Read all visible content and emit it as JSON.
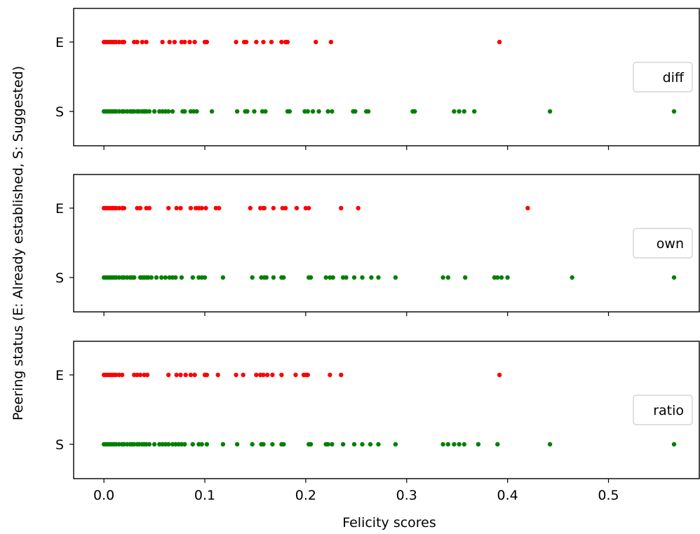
{
  "chart_data": {
    "type": "scatter",
    "xlabel": "Felicity scores",
    "ylabel": "Peering status (E: Already established, S: Suggested)",
    "xlim": [
      -0.03,
      0.59
    ],
    "x_ticks": [
      "0.0",
      "0.1",
      "0.2",
      "0.3",
      "0.4",
      "0.5"
    ],
    "y_categories": [
      "E",
      "S"
    ],
    "colors": {
      "E": "#ff0000",
      "S": "#008000"
    },
    "panels": [
      {
        "legend": "diff",
        "legend_position": "center-right",
        "series": [
          {
            "status": "E",
            "x": [
              0.0,
              0.002,
              0.004,
              0.006,
              0.008,
              0.01,
              0.012,
              0.015,
              0.018,
              0.02,
              0.03,
              0.033,
              0.038,
              0.042,
              0.058,
              0.065,
              0.07,
              0.077,
              0.08,
              0.085,
              0.09,
              0.1,
              0.102,
              0.131,
              0.139,
              0.141,
              0.151,
              0.158,
              0.166,
              0.176,
              0.18,
              0.182,
              0.21,
              0.225,
              0.392
            ]
          },
          {
            "status": "S",
            "x": [
              0.0,
              0.002,
              0.004,
              0.006,
              0.008,
              0.01,
              0.012,
              0.015,
              0.018,
              0.02,
              0.023,
              0.026,
              0.028,
              0.03,
              0.033,
              0.035,
              0.038,
              0.04,
              0.042,
              0.045,
              0.05,
              0.055,
              0.058,
              0.061,
              0.064,
              0.068,
              0.078,
              0.08,
              0.086,
              0.089,
              0.092,
              0.107,
              0.132,
              0.14,
              0.142,
              0.149,
              0.157,
              0.16,
              0.182,
              0.184,
              0.199,
              0.202,
              0.207,
              0.213,
              0.222,
              0.226,
              0.247,
              0.249,
              0.26,
              0.262,
              0.306,
              0.308,
              0.347,
              0.352,
              0.357,
              0.367,
              0.442,
              0.565
            ]
          }
        ]
      },
      {
        "legend": "own",
        "legend_position": "center-right",
        "series": [
          {
            "status": "E",
            "x": [
              0.0,
              0.002,
              0.004,
              0.006,
              0.008,
              0.01,
              0.012,
              0.015,
              0.018,
              0.02,
              0.033,
              0.036,
              0.042,
              0.045,
              0.064,
              0.072,
              0.076,
              0.086,
              0.091,
              0.094,
              0.097,
              0.101,
              0.111,
              0.114,
              0.145,
              0.155,
              0.158,
              0.159,
              0.168,
              0.177,
              0.18,
              0.191,
              0.2,
              0.203,
              0.235,
              0.252,
              0.42
            ]
          },
          {
            "status": "S",
            "x": [
              0.0,
              0.002,
              0.004,
              0.006,
              0.008,
              0.01,
              0.012,
              0.015,
              0.018,
              0.02,
              0.023,
              0.026,
              0.028,
              0.03,
              0.036,
              0.038,
              0.04,
              0.042,
              0.044,
              0.047,
              0.052,
              0.057,
              0.061,
              0.065,
              0.068,
              0.071,
              0.077,
              0.088,
              0.094,
              0.097,
              0.1,
              0.118,
              0.147,
              0.156,
              0.159,
              0.161,
              0.168,
              0.176,
              0.178,
              0.203,
              0.205,
              0.22,
              0.224,
              0.227,
              0.237,
              0.24,
              0.248,
              0.256,
              0.265,
              0.272,
              0.289,
              0.336,
              0.341,
              0.358,
              0.387,
              0.39,
              0.394,
              0.4,
              0.464,
              0.565
            ]
          }
        ]
      },
      {
        "legend": "ratio",
        "legend_position": "center-right",
        "series": [
          {
            "status": "E",
            "x": [
              0.0,
              0.002,
              0.004,
              0.006,
              0.008,
              0.01,
              0.012,
              0.015,
              0.018,
              0.03,
              0.033,
              0.036,
              0.04,
              0.043,
              0.064,
              0.072,
              0.076,
              0.081,
              0.086,
              0.09,
              0.1,
              0.102,
              0.113,
              0.131,
              0.138,
              0.151,
              0.155,
              0.158,
              0.162,
              0.167,
              0.176,
              0.19,
              0.198,
              0.2,
              0.202,
              0.224,
              0.235,
              0.392
            ]
          },
          {
            "status": "S",
            "x": [
              0.0,
              0.002,
              0.004,
              0.006,
              0.008,
              0.01,
              0.012,
              0.015,
              0.018,
              0.02,
              0.023,
              0.026,
              0.028,
              0.03,
              0.033,
              0.035,
              0.038,
              0.04,
              0.042,
              0.045,
              0.05,
              0.055,
              0.058,
              0.061,
              0.064,
              0.068,
              0.071,
              0.074,
              0.077,
              0.08,
              0.088,
              0.094,
              0.097,
              0.102,
              0.118,
              0.132,
              0.147,
              0.156,
              0.158,
              0.167,
              0.176,
              0.178,
              0.203,
              0.205,
              0.22,
              0.222,
              0.226,
              0.237,
              0.248,
              0.256,
              0.264,
              0.272,
              0.289,
              0.336,
              0.341,
              0.347,
              0.352,
              0.357,
              0.371,
              0.39,
              0.442,
              0.565
            ]
          }
        ]
      }
    ]
  }
}
